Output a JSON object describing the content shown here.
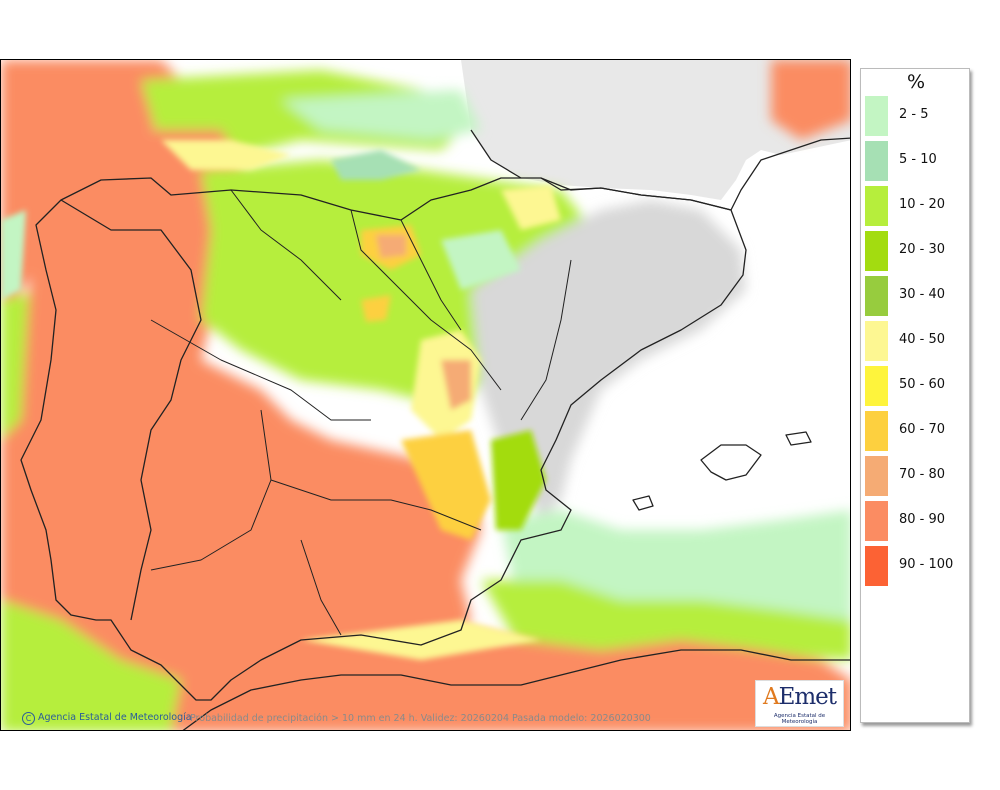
{
  "legend": {
    "title": "%",
    "classes": [
      {
        "label": "2 - 5",
        "color": "#c3f5c3"
      },
      {
        "label": "5 - 10",
        "color": "#a6e0b4"
      },
      {
        "label": "10 - 20",
        "color": "#b6ee3c"
      },
      {
        "label": "20 - 30",
        "color": "#a3dc10"
      },
      {
        "label": "30 - 40",
        "color": "#97cc3e"
      },
      {
        "label": "40 - 50",
        "color": "#fdf792"
      },
      {
        "label": "50 - 60",
        "color": "#fef43c"
      },
      {
        "label": "60 - 70",
        "color": "#fdd03f"
      },
      {
        "label": "70 - 80",
        "color": "#f5ab74"
      },
      {
        "label": "80 - 90",
        "color": "#fb8c62"
      },
      {
        "label": "90 - 100",
        "color": "#fc6234"
      }
    ]
  },
  "footer": {
    "credit_symbol": "C",
    "credit": "Agencia Estatal de Meteorología",
    "caption": "Probabilidad de precipitación > 10 mm en 24 h. Validez: 20260204 Pasada modelo: 2026020300"
  },
  "logo": {
    "text_a": "A",
    "text_rest": "Emet",
    "subtitle": "Agencia Estatal de Meteorología"
  },
  "colors": {
    "sea_none": "#ffffff",
    "land_none": "#e8e8e8",
    "border": "#222222"
  }
}
